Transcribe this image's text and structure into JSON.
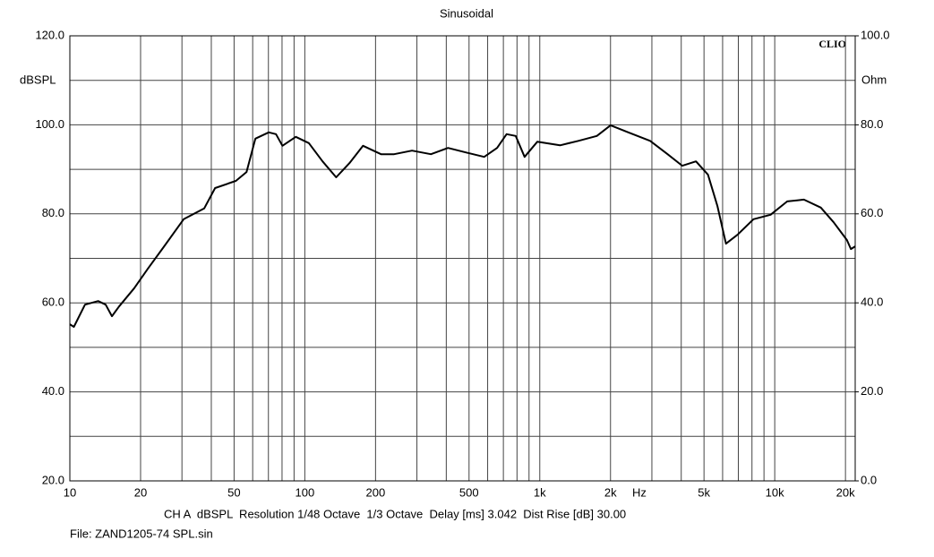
{
  "chart_data": {
    "type": "line",
    "title": "Sinusoidal",
    "logo": "CLIO",
    "ylabel": "dBSPL",
    "y2label": "Ohm",
    "x_unit_label": "Hz",
    "footer_text": "CH A  dBSPL  Resolution 1/48 Octave  1/3 Octave  Delay [ms] 3.042  Dist Rise [dB] 30.00",
    "file_label": "File: ZAND1205-74 SPL.sin",
    "x_log_scale": true,
    "grid": true,
    "color": "#000000",
    "xlim": [
      10,
      22000
    ],
    "xticks": [
      10,
      20,
      50,
      100,
      200,
      500,
      {
        "value": 1000,
        "label": "1k"
      },
      {
        "value": 2000,
        "label": "2k"
      },
      {
        "value": 5000,
        "label": "5k"
      },
      {
        "value": 10000,
        "label": "10k"
      },
      {
        "value": 20000,
        "label": "20k"
      }
    ],
    "xgrid_minor": [
      30,
      40,
      60,
      70,
      80,
      90,
      300,
      400,
      600,
      700,
      800,
      900,
      3000,
      4000,
      6000,
      7000,
      8000,
      9000
    ],
    "ylim": [
      20,
      120
    ],
    "yticks": [
      {
        "value": 20,
        "label": "20.0"
      },
      {
        "value": 40,
        "label": "40.0"
      },
      {
        "value": 60,
        "label": "60.0"
      },
      {
        "value": 80,
        "label": "80.0"
      },
      {
        "value": 100,
        "label": "100.0"
      },
      {
        "value": 120,
        "label": "120.0"
      }
    ],
    "ygrid_minor": [
      30,
      50,
      70,
      90,
      110
    ],
    "y2lim": [
      0,
      100
    ],
    "y2ticks": [
      {
        "value": 0,
        "label": "0.0"
      },
      {
        "value": 20,
        "label": "20.0"
      },
      {
        "value": 40,
        "label": "40.0"
      },
      {
        "value": 60,
        "label": "60.0"
      },
      {
        "value": 80,
        "label": "80.0"
      },
      {
        "value": 100,
        "label": "100.0"
      }
    ],
    "x": [
      10,
      10.4,
      11.6,
      13.2,
      14.2,
      15.1,
      16.2,
      18.8,
      21.5,
      25.2,
      30.5,
      37.3,
      41.5,
      50.9,
      56.5,
      61.6,
      70.2,
      75.4,
      80.3,
      91.5,
      104,
      119,
      136,
      155,
      177,
      211,
      240,
      286,
      344,
      407,
      484,
      580,
      658,
      722,
      790,
      862,
      976,
      1220,
      1460,
      1750,
      2000,
      2380,
      2950,
      3500,
      4040,
      4620,
      5200,
      5700,
      6200,
      6940,
      8120,
      9600,
      11300,
      13300,
      15700,
      17800,
      20300,
      21100,
      22000
    ],
    "values": [
      55.2,
      54.6,
      59.6,
      60.4,
      59.6,
      57,
      59.2,
      63.3,
      67.7,
      72.7,
      78.8,
      81.2,
      85.8,
      87.4,
      89.4,
      96.9,
      98.3,
      97.9,
      95.3,
      97.3,
      95.9,
      91.8,
      88.2,
      91.4,
      95.3,
      93.4,
      93.4,
      94.2,
      93.4,
      94.8,
      93.8,
      92.8,
      94.8,
      97.9,
      97.5,
      92.8,
      96.2,
      95.4,
      96.4,
      97.5,
      99.9,
      98.3,
      96.4,
      93.4,
      90.8,
      91.8,
      88.8,
      81.8,
      73.3,
      75.3,
      78.8,
      79.8,
      82.8,
      83.2,
      81.4,
      78.1,
      74.1,
      72.1,
      72.7
    ]
  }
}
